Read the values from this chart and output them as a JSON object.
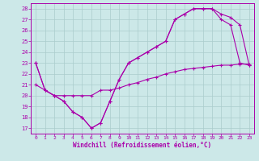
{
  "xlabel": "Windchill (Refroidissement éolien,°C)",
  "bg_color": "#cce8e8",
  "grid_color": "#aacccc",
  "line_color": "#aa00aa",
  "xlim": [
    -0.5,
    23.5
  ],
  "ylim": [
    16.5,
    28.5
  ],
  "xticks": [
    0,
    1,
    2,
    3,
    4,
    5,
    6,
    7,
    8,
    9,
    10,
    11,
    12,
    13,
    14,
    15,
    16,
    17,
    18,
    19,
    20,
    21,
    22,
    23
  ],
  "yticks": [
    17,
    18,
    19,
    20,
    21,
    22,
    23,
    24,
    25,
    26,
    27,
    28
  ],
  "line1_x": [
    0,
    1,
    2,
    3,
    4,
    5,
    6,
    7,
    8,
    9,
    10,
    11,
    12,
    13,
    14,
    15,
    16,
    17,
    18,
    19,
    20,
    21,
    22,
    23
  ],
  "line1_y": [
    23,
    20.5,
    20,
    19.5,
    18.5,
    18,
    17,
    17.5,
    19.5,
    21.5,
    23,
    23.5,
    24,
    24.5,
    25,
    27,
    27.5,
    28,
    28,
    28,
    27,
    26.5,
    23,
    22.8
  ],
  "line2_x": [
    0,
    1,
    2,
    3,
    4,
    5,
    6,
    7,
    8,
    9,
    10,
    11,
    12,
    13,
    14,
    15,
    16,
    17,
    18,
    19,
    20,
    21,
    22,
    23
  ],
  "line2_y": [
    23,
    20.5,
    20,
    19.5,
    18.5,
    18,
    17,
    17.5,
    19.5,
    21.5,
    23,
    23.5,
    24,
    24.5,
    25,
    27,
    27.5,
    28,
    28,
    28,
    27.5,
    27.2,
    26.5,
    22.8
  ],
  "line3_x": [
    0,
    1,
    2,
    3,
    4,
    5,
    6,
    7,
    8,
    9,
    10,
    11,
    12,
    13,
    14,
    15,
    16,
    17,
    18,
    19,
    20,
    21,
    22,
    23
  ],
  "line3_y": [
    21,
    20.5,
    20,
    20,
    20,
    20,
    20,
    20.5,
    20.5,
    20.7,
    21.0,
    21.2,
    21.5,
    21.7,
    22.0,
    22.2,
    22.4,
    22.5,
    22.6,
    22.7,
    22.8,
    22.8,
    22.9,
    22.9
  ]
}
